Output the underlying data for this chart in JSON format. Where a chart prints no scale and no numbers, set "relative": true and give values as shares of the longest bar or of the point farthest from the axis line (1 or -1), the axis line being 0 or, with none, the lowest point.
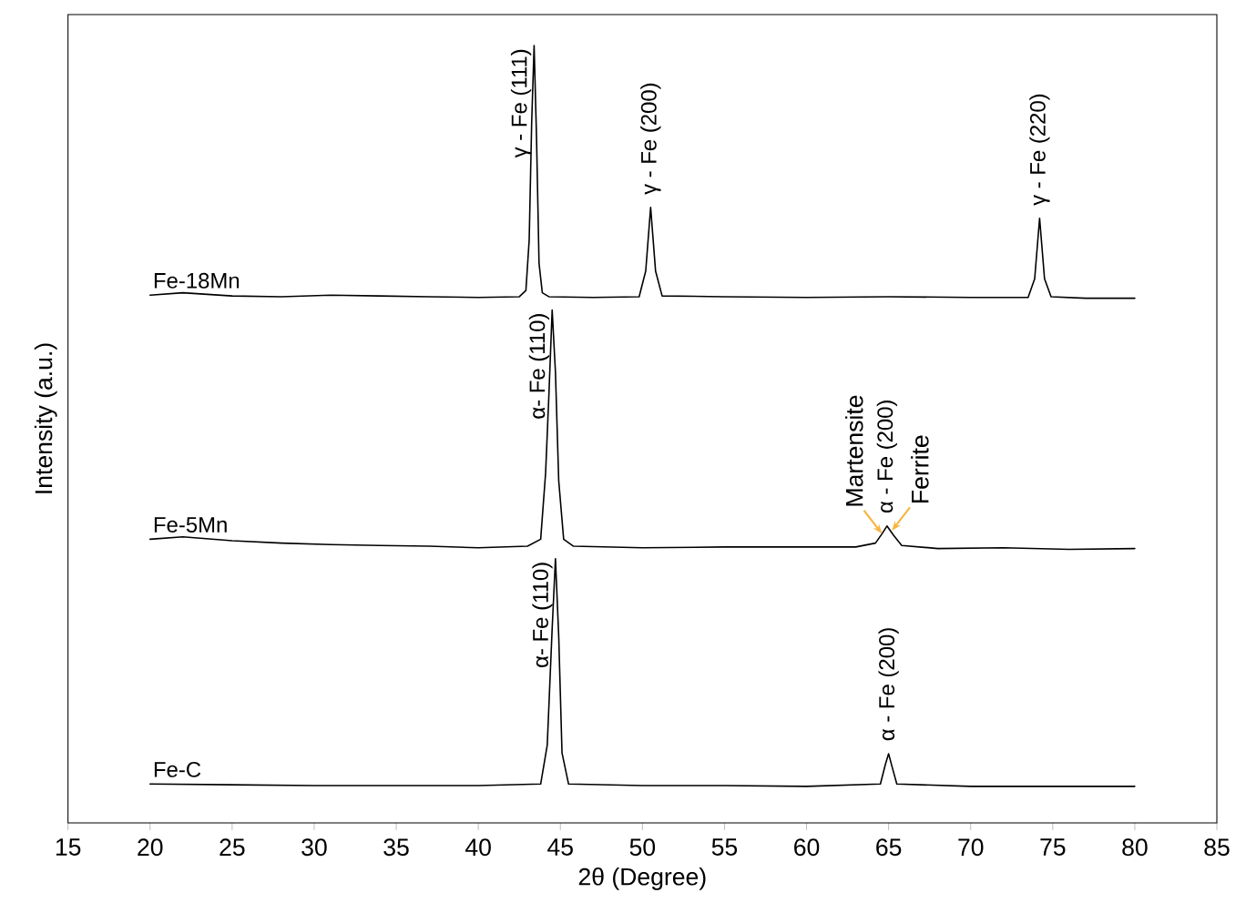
{
  "chart_data": {
    "type": "line",
    "relative": true,
    "xlabel": "2θ (Degree)",
    "ylabel": "Intensity (a.u.)",
    "xlim": [
      15,
      85
    ],
    "xticks": [
      15,
      20,
      25,
      30,
      35,
      40,
      45,
      50,
      55,
      60,
      65,
      70,
      75,
      80,
      85
    ],
    "marker": "none",
    "line_style": "solid",
    "series": [
      {
        "name": "Fe-18Mn",
        "color": "#000000",
        "x": [
          20,
          22,
          25,
          28,
          31,
          34,
          37,
          40,
          42.5,
          42.9,
          43.1,
          43.25,
          43.4,
          43.55,
          43.7,
          43.9,
          44.3,
          47,
          49.8,
          50.2,
          50.5,
          50.8,
          51.2,
          55,
          60,
          65,
          70,
          73.5,
          73.9,
          74.2,
          74.5,
          74.9,
          77,
          80
        ],
        "values": [
          0.679,
          0.682,
          0.678,
          0.677,
          0.679,
          0.678,
          0.677,
          0.676,
          0.677,
          0.685,
          0.75,
          0.9,
          1.0,
          0.88,
          0.72,
          0.682,
          0.677,
          0.676,
          0.677,
          0.71,
          0.792,
          0.71,
          0.678,
          0.677,
          0.676,
          0.677,
          0.676,
          0.676,
          0.7,
          0.778,
          0.7,
          0.677,
          0.675,
          0.675
        ]
      },
      {
        "name": "Fe-5Mn",
        "color": "#000000",
        "x": [
          20,
          22,
          25,
          28,
          31,
          34,
          37,
          40,
          43,
          43.8,
          44.1,
          44.3,
          44.5,
          44.7,
          44.9,
          45.2,
          45.8,
          50,
          55,
          60,
          63,
          64.2,
          64.6,
          64.9,
          65.3,
          65.8,
          68,
          72,
          76,
          80
        ],
        "values": [
          0.365,
          0.368,
          0.363,
          0.36,
          0.358,
          0.357,
          0.356,
          0.354,
          0.356,
          0.365,
          0.45,
          0.55,
          0.66,
          0.58,
          0.44,
          0.365,
          0.356,
          0.354,
          0.355,
          0.355,
          0.355,
          0.36,
          0.372,
          0.382,
          0.37,
          0.357,
          0.353,
          0.354,
          0.352,
          0.353
        ]
      },
      {
        "name": "Fe-C",
        "color": "#000000",
        "x": [
          20,
          25,
          30,
          35,
          40,
          43.8,
          44.2,
          44.5,
          44.7,
          44.9,
          45.1,
          45.5,
          50,
          55,
          60,
          64.5,
          64.8,
          65,
          65.2,
          65.5,
          70,
          75,
          80
        ],
        "values": [
          0.05,
          0.049,
          0.048,
          0.048,
          0.048,
          0.05,
          0.1,
          0.25,
          0.34,
          0.24,
          0.09,
          0.05,
          0.048,
          0.048,
          0.047,
          0.05,
          0.075,
          0.089,
          0.073,
          0.05,
          0.047,
          0.047,
          0.047
        ]
      }
    ],
    "annotations": [
      {
        "text": "γ - Fe (111)",
        "x": 43.4,
        "y": 1.0
      },
      {
        "text": "γ - Fe (200)",
        "x": 50.5,
        "y": 0.792
      },
      {
        "text": "γ - Fe (220)",
        "x": 74.2,
        "y": 0.778
      },
      {
        "text": "α- Fe (110)",
        "x": 44.5,
        "y": 0.66
      },
      {
        "text": "α - Fe (200)",
        "x": 64.9,
        "y": 0.382
      },
      {
        "text": "Martensite",
        "x": 64.6,
        "y": 0.372
      },
      {
        "text": "Ferrite",
        "x": 65.2,
        "y": 0.376
      },
      {
        "text": "α- Fe (110)",
        "x": 44.7,
        "y": 0.34
      },
      {
        "text": "α - Fe (200)",
        "x": 65,
        "y": 0.089
      }
    ]
  }
}
